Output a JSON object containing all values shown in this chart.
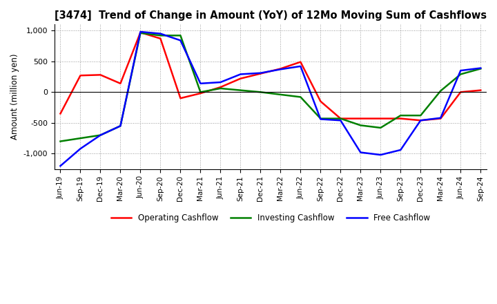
{
  "title": "[3474]  Trend of Change in Amount (YoY) of 12Mo Moving Sum of Cashflows",
  "ylabel": "Amount (million yen)",
  "x_labels": [
    "Jun-19",
    "Sep-19",
    "Dec-19",
    "Mar-20",
    "Jun-20",
    "Sep-20",
    "Dec-20",
    "Mar-21",
    "Jun-21",
    "Sep-21",
    "Dec-21",
    "Mar-22",
    "Jun-22",
    "Sep-22",
    "Dec-22",
    "Mar-23",
    "Jun-23",
    "Sep-23",
    "Dec-23",
    "Mar-24",
    "Jun-24",
    "Sep-24"
  ],
  "operating": [
    -350,
    270,
    280,
    140,
    970,
    870,
    -100,
    -20,
    80,
    220,
    300,
    380,
    490,
    -150,
    -430,
    -430,
    -430,
    -430,
    -460,
    -430,
    0,
    30
  ],
  "investing": [
    -800,
    -750,
    -700,
    -550,
    960,
    920,
    920,
    0,
    60,
    30,
    0,
    -40,
    -80,
    -430,
    -430,
    -540,
    -580,
    -380,
    -380,
    20,
    290,
    380
  ],
  "free": [
    -1200,
    -920,
    -700,
    -550,
    980,
    950,
    840,
    140,
    160,
    290,
    310,
    370,
    420,
    -440,
    -460,
    -980,
    -1020,
    -940,
    -460,
    -420,
    350,
    390
  ],
  "operating_color": "#ff0000",
  "investing_color": "#008000",
  "free_color": "#0000ff",
  "ylim": [
    -1250,
    1100
  ],
  "yticks": [
    -1000,
    -500,
    0,
    500,
    1000
  ],
  "background_color": "#ffffff",
  "grid_color": "#999999"
}
